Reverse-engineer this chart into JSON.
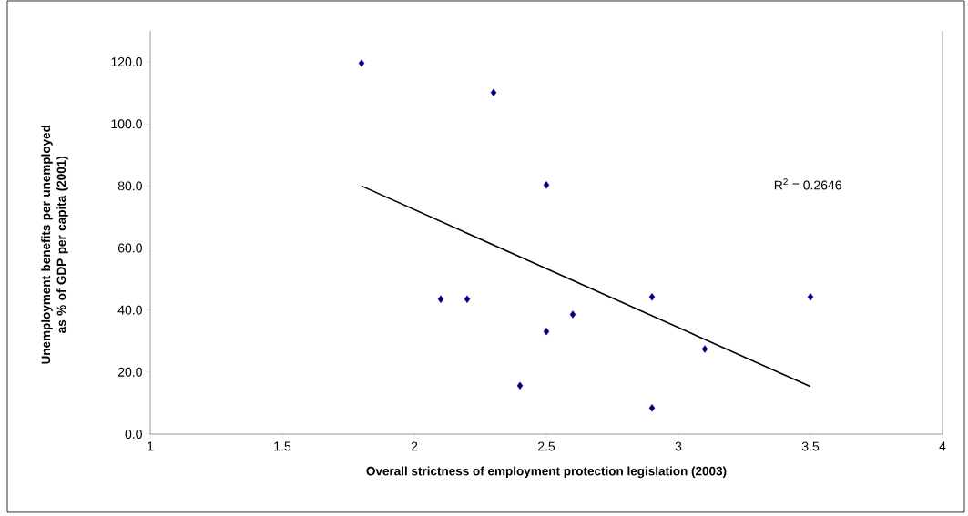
{
  "chart_data": {
    "type": "scatter",
    "xlabel": "Overall strictness of employment protection legislation (2003)",
    "ylabel": "Unemployment benefits per unemployed as % of GDP per capita (2001)",
    "annotations": [
      "R$^{2}$ = 0.2646"
    ],
    "series": [
      {
        "color": "#000080",
        "marker": "diamond",
        "x": [
          1.8,
          2.1,
          2.2,
          2.3,
          2.4,
          2.5,
          2.5,
          2.6,
          2.9,
          2.9,
          3.1,
          3.5
        ],
        "values": [
          119.6,
          43.5,
          43.5,
          110.1,
          15.6,
          80.3,
          33.1,
          38.6,
          44.2,
          8.4,
          27.4,
          44.2
        ]
      },
      {
        "type": "line",
        "color": "#000000",
        "marker": "none",
        "line_style": "solid",
        "x": [
          1.8,
          3.5
        ],
        "values": [
          80.0,
          15.3
        ]
      }
    ],
    "xlim": [
      1,
      4
    ],
    "xticks": [
      1,
      1.5,
      2,
      2.5,
      3,
      3.5,
      4
    ],
    "ylim": [
      0,
      130
    ],
    "yticks": [
      {
        "value": 0,
        "label": "0.0"
      },
      {
        "value": 20,
        "label": "20.0"
      },
      {
        "value": 40,
        "label": "40.0"
      },
      {
        "value": 60,
        "label": "60.0"
      },
      {
        "value": 80,
        "label": "80.0"
      },
      {
        "value": 100,
        "label": "100.0"
      },
      {
        "value": 120,
        "label": "120.0"
      }
    ],
    "grid": false
  }
}
